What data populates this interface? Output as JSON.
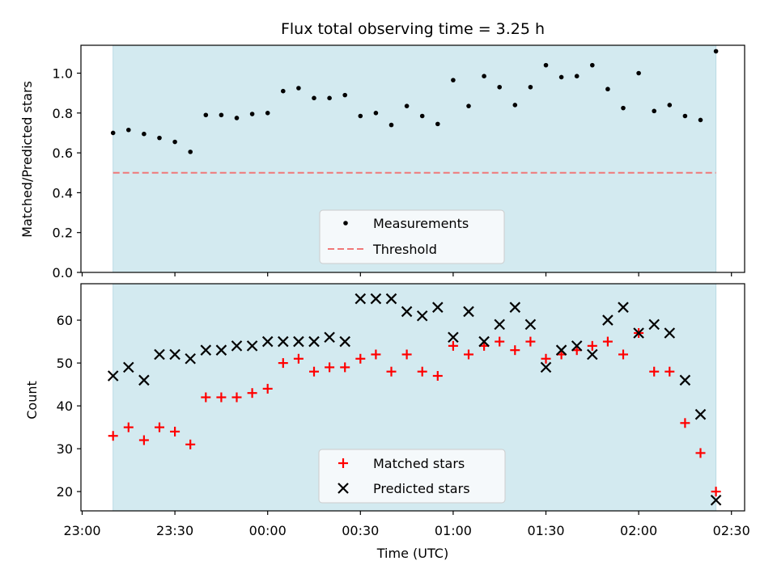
{
  "chart_data": {
    "type": "scatter",
    "title": "Flux total observing time = 3.25 h",
    "xlabel": "Time (UTC)",
    "x_tick_labels": [
      "23:00",
      "23:30",
      "00:00",
      "00:30",
      "01:00",
      "01:30",
      "02:00",
      "02:30"
    ],
    "time_axis": {
      "start": "23:00",
      "end": "02:30",
      "tick_interval_minutes": 30
    },
    "observing_window": {
      "start": "23:10",
      "end": "02:25"
    },
    "window_color": "#d3eaf0",
    "top_panel": {
      "ylabel": "Matched/Predicted stars",
      "ylim": [
        0,
        1.14
      ],
      "y_ticks": [
        "0.0",
        "0.2",
        "0.4",
        "0.6",
        "0.8",
        "1.0"
      ],
      "legend": [
        "Measurements",
        "Threshold"
      ],
      "legend_position": "bottom-center",
      "threshold": {
        "value": 0.5,
        "color": "#f07878",
        "style": "dashed"
      },
      "series": [
        {
          "name": "Measurements",
          "marker": "dot",
          "color": "#000000",
          "points": [
            [
              "23:10",
              0.7
            ],
            [
              "23:15",
              0.715
            ],
            [
              "23:20",
              0.695
            ],
            [
              "23:25",
              0.675
            ],
            [
              "23:30",
              0.655
            ],
            [
              "23:35",
              0.605
            ],
            [
              "23:40",
              0.79
            ],
            [
              "23:45",
              0.79
            ],
            [
              "23:50",
              0.775
            ],
            [
              "23:55",
              0.795
            ],
            [
              "00:00",
              0.8
            ],
            [
              "00:05",
              0.91
            ],
            [
              "00:10",
              0.925
            ],
            [
              "00:15",
              0.875
            ],
            [
              "00:20",
              0.875
            ],
            [
              "00:25",
              0.89
            ],
            [
              "00:30",
              0.785
            ],
            [
              "00:35",
              0.8
            ],
            [
              "00:40",
              0.74
            ],
            [
              "00:45",
              0.835
            ],
            [
              "00:50",
              0.785
            ],
            [
              "00:55",
              0.745
            ],
            [
              "01:00",
              0.965
            ],
            [
              "01:05",
              0.835
            ],
            [
              "01:10",
              0.985
            ],
            [
              "01:15",
              0.93
            ],
            [
              "01:20",
              0.84
            ],
            [
              "01:25",
              0.93
            ],
            [
              "01:30",
              1.04
            ],
            [
              "01:35",
              0.98
            ],
            [
              "01:40",
              0.985
            ],
            [
              "01:45",
              1.04
            ],
            [
              "01:50",
              0.92
            ],
            [
              "01:55",
              0.825
            ],
            [
              "02:00",
              1.0
            ],
            [
              "02:05",
              0.81
            ],
            [
              "02:10",
              0.84
            ],
            [
              "02:15",
              0.785
            ],
            [
              "02:20",
              0.765
            ],
            [
              "02:25",
              1.11
            ]
          ]
        }
      ]
    },
    "bottom_panel": {
      "ylabel": "Count",
      "ylim": [
        15.5,
        68.5
      ],
      "y_ticks": [
        "20",
        "30",
        "40",
        "50",
        "60"
      ],
      "legend": [
        "Matched stars",
        "Predicted stars"
      ],
      "legend_position": "bottom-center",
      "series": [
        {
          "name": "Matched stars",
          "marker": "plus",
          "color": "#ff0000",
          "points": [
            [
              "23:10",
              33
            ],
            [
              "23:15",
              35
            ],
            [
              "23:20",
              32
            ],
            [
              "23:25",
              35
            ],
            [
              "23:30",
              34
            ],
            [
              "23:35",
              31
            ],
            [
              "23:40",
              42
            ],
            [
              "23:45",
              42
            ],
            [
              "23:50",
              42
            ],
            [
              "23:55",
              43
            ],
            [
              "00:00",
              44
            ],
            [
              "00:05",
              50
            ],
            [
              "00:10",
              51
            ],
            [
              "00:15",
              48
            ],
            [
              "00:20",
              49
            ],
            [
              "00:25",
              49
            ],
            [
              "00:30",
              51
            ],
            [
              "00:35",
              52
            ],
            [
              "00:40",
              48
            ],
            [
              "00:45",
              52
            ],
            [
              "00:50",
              48
            ],
            [
              "00:55",
              47
            ],
            [
              "01:00",
              54
            ],
            [
              "01:05",
              52
            ],
            [
              "01:10",
              54
            ],
            [
              "01:15",
              55
            ],
            [
              "01:20",
              53
            ],
            [
              "01:25",
              55
            ],
            [
              "01:30",
              51
            ],
            [
              "01:35",
              52
            ],
            [
              "01:40",
              53
            ],
            [
              "01:45",
              54
            ],
            [
              "01:50",
              55
            ],
            [
              "01:55",
              52
            ],
            [
              "02:00",
              57
            ],
            [
              "02:05",
              48
            ],
            [
              "02:10",
              48
            ],
            [
              "02:15",
              36
            ],
            [
              "02:20",
              29
            ],
            [
              "02:25",
              20
            ]
          ]
        },
        {
          "name": "Predicted stars",
          "marker": "x",
          "color": "#000000",
          "points": [
            [
              "23:10",
              47
            ],
            [
              "23:15",
              49
            ],
            [
              "23:20",
              46
            ],
            [
              "23:25",
              52
            ],
            [
              "23:30",
              52
            ],
            [
              "23:35",
              51
            ],
            [
              "23:40",
              53
            ],
            [
              "23:45",
              53
            ],
            [
              "23:50",
              54
            ],
            [
              "23:55",
              54
            ],
            [
              "00:00",
              55
            ],
            [
              "00:05",
              55
            ],
            [
              "00:10",
              55
            ],
            [
              "00:15",
              55
            ],
            [
              "00:20",
              56
            ],
            [
              "00:25",
              55
            ],
            [
              "00:30",
              65
            ],
            [
              "00:35",
              65
            ],
            [
              "00:40",
              65
            ],
            [
              "00:45",
              62
            ],
            [
              "00:50",
              61
            ],
            [
              "00:55",
              63
            ],
            [
              "01:00",
              56
            ],
            [
              "01:05",
              62
            ],
            [
              "01:10",
              55
            ],
            [
              "01:15",
              59
            ],
            [
              "01:20",
              63
            ],
            [
              "01:25",
              59
            ],
            [
              "01:30",
              49
            ],
            [
              "01:35",
              53
            ],
            [
              "01:40",
              54
            ],
            [
              "01:45",
              52
            ],
            [
              "01:50",
              60
            ],
            [
              "01:55",
              63
            ],
            [
              "02:00",
              57
            ],
            [
              "02:05",
              59
            ],
            [
              "02:10",
              57
            ],
            [
              "02:15",
              46
            ],
            [
              "02:20",
              38
            ],
            [
              "02:25",
              18
            ]
          ]
        }
      ]
    }
  }
}
